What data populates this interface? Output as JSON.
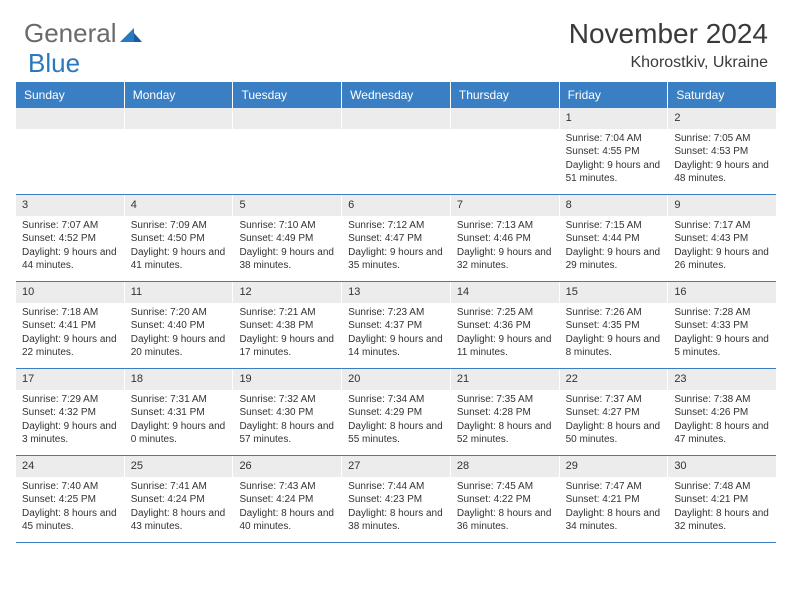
{
  "logo": {
    "text1": "General",
    "text2": "Blue"
  },
  "title": "November 2024",
  "location": "Khorostkiv, Ukraine",
  "colors": {
    "header_bg": "#3a7fc4",
    "header_text": "#ffffff",
    "daynum_bg": "#ececec",
    "border": "#3a7fc4",
    "text": "#333333",
    "logo_gray": "#6a6a6a",
    "logo_blue": "#2a78c0",
    "background": "#ffffff"
  },
  "day_names": [
    "Sunday",
    "Monday",
    "Tuesday",
    "Wednesday",
    "Thursday",
    "Friday",
    "Saturday"
  ],
  "weeks": [
    [
      null,
      null,
      null,
      null,
      null,
      {
        "n": "1",
        "sr": "Sunrise: 7:04 AM",
        "ss": "Sunset: 4:55 PM",
        "dl": "Daylight: 9 hours and 51 minutes."
      },
      {
        "n": "2",
        "sr": "Sunrise: 7:05 AM",
        "ss": "Sunset: 4:53 PM",
        "dl": "Daylight: 9 hours and 48 minutes."
      }
    ],
    [
      {
        "n": "3",
        "sr": "Sunrise: 7:07 AM",
        "ss": "Sunset: 4:52 PM",
        "dl": "Daylight: 9 hours and 44 minutes."
      },
      {
        "n": "4",
        "sr": "Sunrise: 7:09 AM",
        "ss": "Sunset: 4:50 PM",
        "dl": "Daylight: 9 hours and 41 minutes."
      },
      {
        "n": "5",
        "sr": "Sunrise: 7:10 AM",
        "ss": "Sunset: 4:49 PM",
        "dl": "Daylight: 9 hours and 38 minutes."
      },
      {
        "n": "6",
        "sr": "Sunrise: 7:12 AM",
        "ss": "Sunset: 4:47 PM",
        "dl": "Daylight: 9 hours and 35 minutes."
      },
      {
        "n": "7",
        "sr": "Sunrise: 7:13 AM",
        "ss": "Sunset: 4:46 PM",
        "dl": "Daylight: 9 hours and 32 minutes."
      },
      {
        "n": "8",
        "sr": "Sunrise: 7:15 AM",
        "ss": "Sunset: 4:44 PM",
        "dl": "Daylight: 9 hours and 29 minutes."
      },
      {
        "n": "9",
        "sr": "Sunrise: 7:17 AM",
        "ss": "Sunset: 4:43 PM",
        "dl": "Daylight: 9 hours and 26 minutes."
      }
    ],
    [
      {
        "n": "10",
        "sr": "Sunrise: 7:18 AM",
        "ss": "Sunset: 4:41 PM",
        "dl": "Daylight: 9 hours and 22 minutes."
      },
      {
        "n": "11",
        "sr": "Sunrise: 7:20 AM",
        "ss": "Sunset: 4:40 PM",
        "dl": "Daylight: 9 hours and 20 minutes."
      },
      {
        "n": "12",
        "sr": "Sunrise: 7:21 AM",
        "ss": "Sunset: 4:38 PM",
        "dl": "Daylight: 9 hours and 17 minutes."
      },
      {
        "n": "13",
        "sr": "Sunrise: 7:23 AM",
        "ss": "Sunset: 4:37 PM",
        "dl": "Daylight: 9 hours and 14 minutes."
      },
      {
        "n": "14",
        "sr": "Sunrise: 7:25 AM",
        "ss": "Sunset: 4:36 PM",
        "dl": "Daylight: 9 hours and 11 minutes."
      },
      {
        "n": "15",
        "sr": "Sunrise: 7:26 AM",
        "ss": "Sunset: 4:35 PM",
        "dl": "Daylight: 9 hours and 8 minutes."
      },
      {
        "n": "16",
        "sr": "Sunrise: 7:28 AM",
        "ss": "Sunset: 4:33 PM",
        "dl": "Daylight: 9 hours and 5 minutes."
      }
    ],
    [
      {
        "n": "17",
        "sr": "Sunrise: 7:29 AM",
        "ss": "Sunset: 4:32 PM",
        "dl": "Daylight: 9 hours and 3 minutes."
      },
      {
        "n": "18",
        "sr": "Sunrise: 7:31 AM",
        "ss": "Sunset: 4:31 PM",
        "dl": "Daylight: 9 hours and 0 minutes."
      },
      {
        "n": "19",
        "sr": "Sunrise: 7:32 AM",
        "ss": "Sunset: 4:30 PM",
        "dl": "Daylight: 8 hours and 57 minutes."
      },
      {
        "n": "20",
        "sr": "Sunrise: 7:34 AM",
        "ss": "Sunset: 4:29 PM",
        "dl": "Daylight: 8 hours and 55 minutes."
      },
      {
        "n": "21",
        "sr": "Sunrise: 7:35 AM",
        "ss": "Sunset: 4:28 PM",
        "dl": "Daylight: 8 hours and 52 minutes."
      },
      {
        "n": "22",
        "sr": "Sunrise: 7:37 AM",
        "ss": "Sunset: 4:27 PM",
        "dl": "Daylight: 8 hours and 50 minutes."
      },
      {
        "n": "23",
        "sr": "Sunrise: 7:38 AM",
        "ss": "Sunset: 4:26 PM",
        "dl": "Daylight: 8 hours and 47 minutes."
      }
    ],
    [
      {
        "n": "24",
        "sr": "Sunrise: 7:40 AM",
        "ss": "Sunset: 4:25 PM",
        "dl": "Daylight: 8 hours and 45 minutes."
      },
      {
        "n": "25",
        "sr": "Sunrise: 7:41 AM",
        "ss": "Sunset: 4:24 PM",
        "dl": "Daylight: 8 hours and 43 minutes."
      },
      {
        "n": "26",
        "sr": "Sunrise: 7:43 AM",
        "ss": "Sunset: 4:24 PM",
        "dl": "Daylight: 8 hours and 40 minutes."
      },
      {
        "n": "27",
        "sr": "Sunrise: 7:44 AM",
        "ss": "Sunset: 4:23 PM",
        "dl": "Daylight: 8 hours and 38 minutes."
      },
      {
        "n": "28",
        "sr": "Sunrise: 7:45 AM",
        "ss": "Sunset: 4:22 PM",
        "dl": "Daylight: 8 hours and 36 minutes."
      },
      {
        "n": "29",
        "sr": "Sunrise: 7:47 AM",
        "ss": "Sunset: 4:21 PM",
        "dl": "Daylight: 8 hours and 34 minutes."
      },
      {
        "n": "30",
        "sr": "Sunrise: 7:48 AM",
        "ss": "Sunset: 4:21 PM",
        "dl": "Daylight: 8 hours and 32 minutes."
      }
    ]
  ]
}
